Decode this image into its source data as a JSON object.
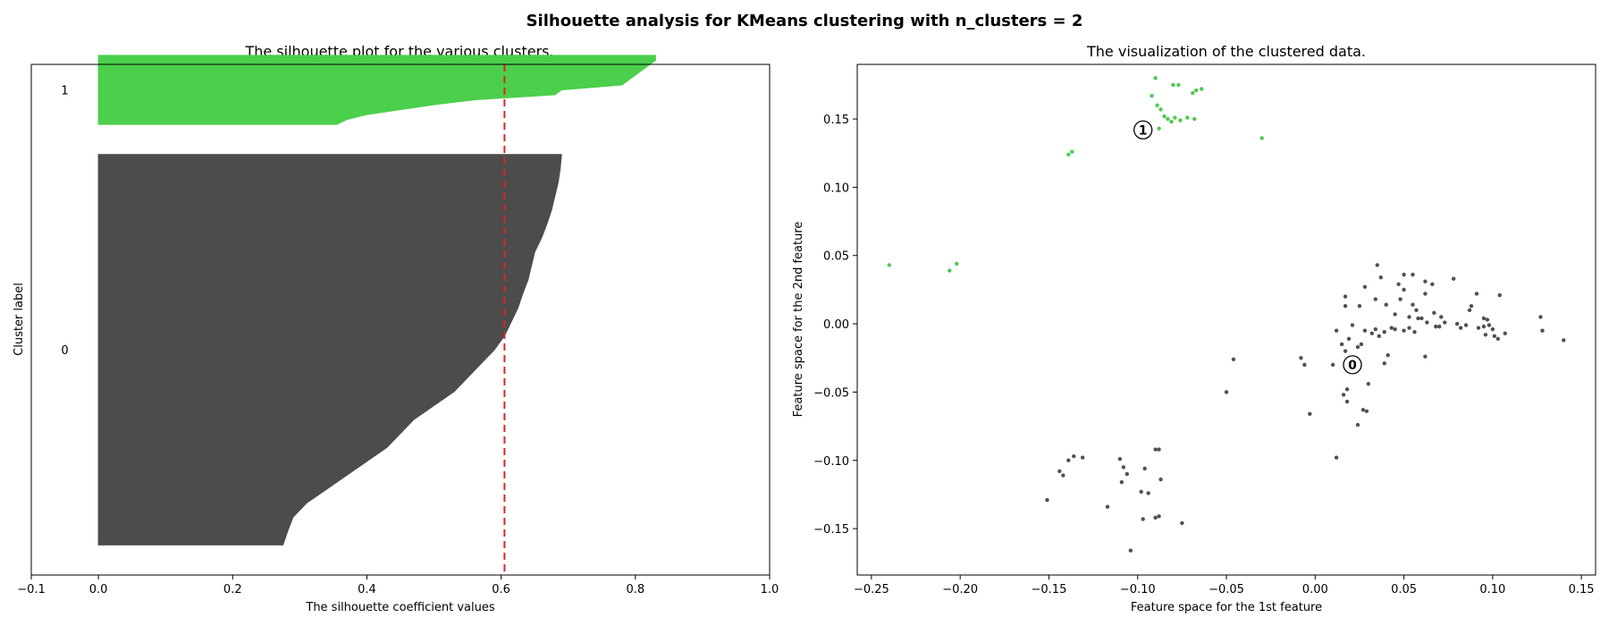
{
  "figure": {
    "suptitle": "Silhouette analysis for KMeans clustering with n_clusters = 2"
  },
  "chart_data": [
    {
      "type": "area",
      "title": "The silhouette plot for the various clusters.",
      "xlabel": "The silhouette coefficient values",
      "ylabel": "Cluster label",
      "xlim": [
        -0.1,
        1.0
      ],
      "xticks": [
        "−0.1",
        "0.0",
        "0.2",
        "0.4",
        "0.6",
        "0.8",
        "1.0"
      ],
      "xtick_values": [
        -0.1,
        0.0,
        0.2,
        0.4,
        0.6,
        0.8,
        1.0
      ],
      "ylim": [
        0,
        170
      ],
      "average_silhouette_score": 0.605,
      "clusters": [
        {
          "label": "0",
          "color": "#4c4c4c",
          "y_lower": 10,
          "size": 130,
          "values_desc": [
            0.69,
            0.688,
            0.685,
            0.68,
            0.675,
            0.668,
            0.66,
            0.65,
            0.645,
            0.64,
            0.632,
            0.625,
            0.615,
            0.605,
            0.59,
            0.57,
            0.55,
            0.53,
            0.5,
            0.47,
            0.45,
            0.43,
            0.4,
            0.37,
            0.34,
            0.31,
            0.29,
            0.282,
            0.275
          ]
        },
        {
          "label": "1",
          "color": "#4ccf4c",
          "y_lower": 150,
          "size": 23,
          "values_desc": [
            0.83,
            0.83,
            0.82,
            0.81,
            0.8,
            0.79,
            0.78,
            0.69,
            0.68,
            0.56,
            0.5,
            0.45,
            0.4,
            0.37,
            0.355
          ]
        }
      ],
      "legend": "none",
      "grid": false
    },
    {
      "type": "scatter",
      "title": "The visualization of the clustered data.",
      "xlabel": "Feature space for the 1st feature",
      "ylabel": "Feature space for the 2nd feature",
      "xlim": [
        -0.258,
        0.158
      ],
      "ylim": [
        -0.184,
        0.19
      ],
      "xticks": [
        "−0.25",
        "−0.20",
        "−0.15",
        "−0.10",
        "−0.05",
        "0.00",
        "0.05",
        "0.10",
        "0.15"
      ],
      "xtick_values": [
        -0.25,
        -0.2,
        -0.15,
        -0.1,
        -0.05,
        0.0,
        0.05,
        0.1,
        0.15
      ],
      "yticks": [
        "−0.15",
        "−0.10",
        "−0.05",
        "0.00",
        "0.05",
        "0.10",
        "0.15"
      ],
      "ytick_values": [
        -0.15,
        -0.1,
        -0.05,
        0.0,
        0.05,
        0.1,
        0.15
      ],
      "legend": "none",
      "grid": false,
      "series": [
        {
          "cluster": "0",
          "color": "#333333",
          "points": [
            [
              -0.139,
              -0.1
            ],
            [
              -0.136,
              -0.097
            ],
            [
              -0.131,
              -0.098
            ],
            [
              -0.144,
              -0.108
            ],
            [
              -0.142,
              -0.111
            ],
            [
              -0.151,
              -0.129
            ],
            [
              -0.117,
              -0.134
            ],
            [
              -0.108,
              -0.105
            ],
            [
              -0.11,
              -0.099
            ],
            [
              -0.106,
              -0.11
            ],
            [
              -0.109,
              -0.116
            ],
            [
              -0.096,
              -0.106
            ],
            [
              -0.094,
              -0.124
            ],
            [
              -0.098,
              -0.123
            ],
            [
              -0.09,
              -0.092
            ],
            [
              -0.088,
              -0.092
            ],
            [
              -0.087,
              -0.114
            ],
            [
              -0.09,
              -0.142
            ],
            [
              -0.097,
              -0.143
            ],
            [
              -0.075,
              -0.146
            ],
            [
              -0.088,
              -0.141
            ],
            [
              -0.104,
              -0.166
            ],
            [
              -0.046,
              -0.026
            ],
            [
              -0.05,
              -0.05
            ],
            [
              -0.008,
              -0.025
            ],
            [
              -0.006,
              -0.03
            ],
            [
              -0.003,
              -0.066
            ],
            [
              0.012,
              -0.098
            ],
            [
              0.01,
              -0.03
            ],
            [
              0.016,
              -0.052
            ],
            [
              0.018,
              -0.057
            ],
            [
              0.018,
              -0.048
            ],
            [
              0.024,
              -0.074
            ],
            [
              0.027,
              -0.063
            ],
            [
              0.029,
              -0.064
            ],
            [
              0.03,
              -0.044
            ],
            [
              0.026,
              -0.015
            ],
            [
              0.024,
              -0.017
            ],
            [
              0.012,
              -0.005
            ],
            [
              0.015,
              -0.015
            ],
            [
              0.017,
              -0.02
            ],
            [
              0.019,
              -0.011
            ],
            [
              0.017,
              0.013
            ],
            [
              0.017,
              0.02
            ],
            [
              0.025,
              0.013
            ],
            [
              0.028,
              0.027
            ],
            [
              0.028,
              -0.005
            ],
            [
              0.034,
              0.018
            ],
            [
              0.035,
              0.043
            ],
            [
              0.037,
              0.034
            ],
            [
              0.04,
              0.014
            ],
            [
              0.036,
              -0.009
            ],
            [
              0.039,
              -0.029
            ],
            [
              0.041,
              -0.023
            ],
            [
              0.034,
              -0.004
            ],
            [
              0.043,
              -0.003
            ],
            [
              0.045,
              0.007
            ],
            [
              0.047,
              0.029
            ],
            [
              0.05,
              0.025
            ],
            [
              0.05,
              0.036
            ],
            [
              0.055,
              0.036
            ],
            [
              0.055,
              0.014
            ],
            [
              0.057,
              0.01
            ],
            [
              0.053,
              0.005
            ],
            [
              0.05,
              -0.005
            ],
            [
              0.053,
              -0.003
            ],
            [
              0.056,
              -0.006
            ],
            [
              0.06,
              0.004
            ],
            [
              0.063,
              0.001
            ],
            [
              0.062,
              0.022
            ],
            [
              0.062,
              0.031
            ],
            [
              0.067,
              0.008
            ],
            [
              0.068,
              -0.002
            ],
            [
              0.062,
              -0.024
            ],
            [
              0.066,
              0.029
            ],
            [
              0.07,
              -0.002
            ],
            [
              0.071,
              0.005
            ],
            [
              0.078,
              0.033
            ],
            [
              0.08,
              0.0
            ],
            [
              0.085,
              -0.001
            ],
            [
              0.087,
              0.01
            ],
            [
              0.088,
              0.013
            ],
            [
              0.091,
              0.022
            ],
            [
              0.092,
              -0.003
            ],
            [
              0.095,
              0.004
            ],
            [
              0.096,
              -0.008
            ],
            [
              0.097,
              0.003
            ],
            [
              0.098,
              -0.001
            ],
            [
              0.1,
              -0.004
            ],
            [
              0.101,
              -0.009
            ],
            [
              0.103,
              -0.011
            ],
            [
              0.104,
              0.021
            ],
            [
              0.107,
              -0.007
            ],
            [
              0.127,
              0.005
            ],
            [
              0.128,
              -0.005
            ],
            [
              0.14,
              -0.012
            ],
            [
              0.058,
              0.004
            ],
            [
              0.045,
              -0.004
            ],
            [
              0.032,
              -0.007
            ],
            [
              0.021,
              -0.001
            ],
            [
              0.095,
              -0.002
            ],
            [
              0.082,
              -0.003
            ],
            [
              0.073,
              0.001
            ],
            [
              0.048,
              0.018
            ],
            [
              0.039,
              -0.006
            ]
          ]
        },
        {
          "cluster": "1",
          "color": "#2fc02f",
          "points": [
            [
              -0.24,
              0.043
            ],
            [
              -0.206,
              0.039
            ],
            [
              -0.202,
              0.044
            ],
            [
              -0.139,
              0.124
            ],
            [
              -0.137,
              0.126
            ],
            [
              -0.09,
              0.18
            ],
            [
              -0.092,
              0.167
            ],
            [
              -0.089,
              0.16
            ],
            [
              -0.087,
              0.157
            ],
            [
              -0.085,
              0.152
            ],
            [
              -0.088,
              0.143
            ],
            [
              -0.083,
              0.15
            ],
            [
              -0.081,
              0.148
            ],
            [
              -0.08,
              0.175
            ],
            [
              -0.077,
              0.175
            ],
            [
              -0.079,
              0.151
            ],
            [
              -0.072,
              0.151
            ],
            [
              -0.069,
              0.169
            ],
            [
              -0.068,
              0.15
            ],
            [
              -0.067,
              0.171
            ],
            [
              -0.064,
              0.172
            ],
            [
              -0.03,
              0.136
            ],
            [
              -0.076,
              0.149
            ]
          ]
        }
      ],
      "centers": [
        {
          "label": "0",
          "x": 0.021,
          "y": -0.03
        },
        {
          "label": "1",
          "x": -0.097,
          "y": 0.142
        }
      ]
    }
  ]
}
